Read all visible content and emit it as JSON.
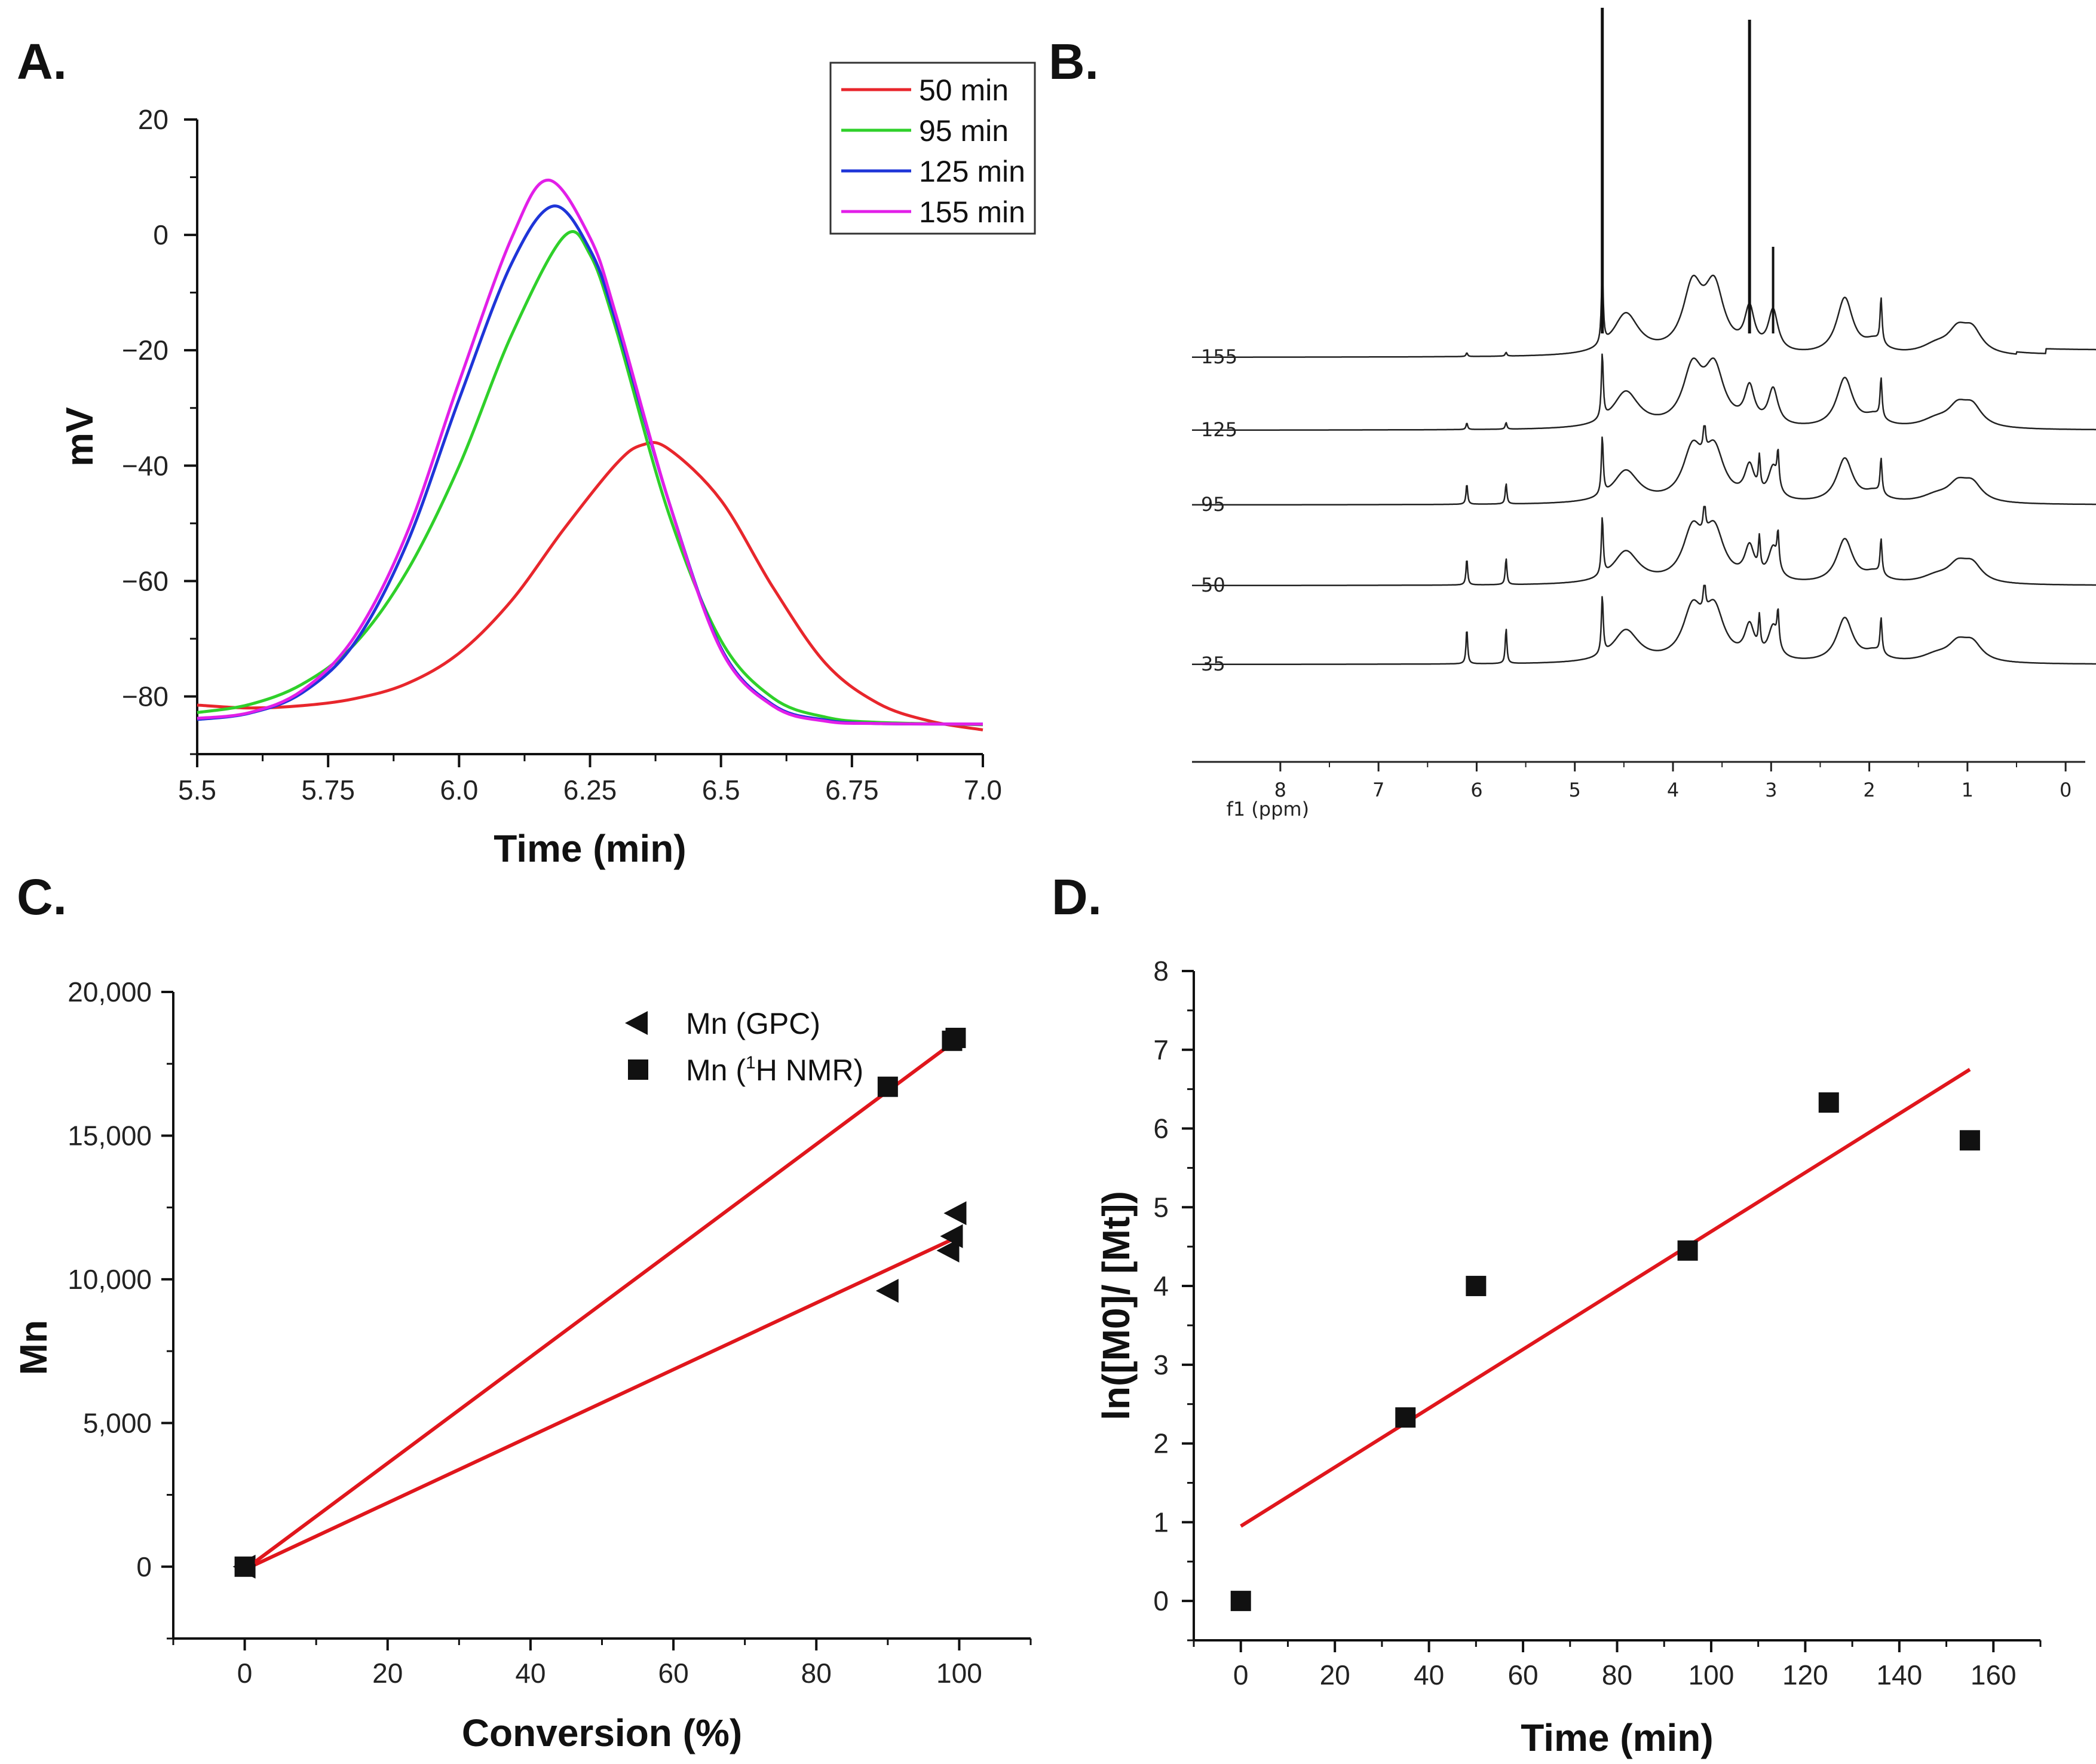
{
  "chart_data": [
    {
      "panel": "A.",
      "type": "line",
      "xlabel": "Time (min)",
      "ylabel": "mV",
      "xlim": [
        5.5,
        7.0
      ],
      "ylim": [
        -90,
        20
      ],
      "xticks": [
        "5.5",
        "5.75",
        "6.0",
        "6.25",
        "6.5",
        "6.75",
        "7.0"
      ],
      "xtick_values": [
        5.5,
        5.75,
        6.0,
        6.25,
        6.5,
        6.75,
        7.0
      ],
      "yticks": [
        "20",
        "0",
        "−20",
        "−40",
        "−60",
        "−80"
      ],
      "ytick_values": [
        20,
        0,
        -20,
        -40,
        -60,
        -80
      ],
      "legend_position": "top-right",
      "series": [
        {
          "name": "50 min",
          "color": "#e8262c",
          "values": [
            [
              5.5,
              -81.5
            ],
            [
              5.6,
              -82
            ],
            [
              5.7,
              -81.6
            ],
            [
              5.8,
              -80.4
            ],
            [
              5.9,
              -77.8
            ],
            [
              6.0,
              -72.5
            ],
            [
              6.1,
              -63.4
            ],
            [
              6.2,
              -51
            ],
            [
              6.3,
              -39.7
            ],
            [
              6.35,
              -36.4
            ],
            [
              6.4,
              -37.1
            ],
            [
              6.5,
              -46
            ],
            [
              6.6,
              -61.2
            ],
            [
              6.7,
              -74.3
            ],
            [
              6.8,
              -81.2
            ],
            [
              6.9,
              -84.3
            ],
            [
              7.0,
              -85.8
            ]
          ]
        },
        {
          "name": "95 min",
          "color": "#2fd02a",
          "values": [
            [
              5.5,
              -82.8
            ],
            [
              5.6,
              -81.4
            ],
            [
              5.7,
              -77.9
            ],
            [
              5.8,
              -71
            ],
            [
              5.9,
              -58.4
            ],
            [
              6.0,
              -40.1
            ],
            [
              6.1,
              -17.4
            ],
            [
              6.2,
              -0.3
            ],
            [
              6.25,
              -3.4
            ],
            [
              6.3,
              -16.4
            ],
            [
              6.4,
              -48.2
            ],
            [
              6.5,
              -70.3
            ],
            [
              6.6,
              -80.3
            ],
            [
              6.7,
              -83.6
            ],
            [
              6.8,
              -84.5
            ],
            [
              7.0,
              -84.9
            ]
          ]
        },
        {
          "name": "125 min",
          "color": "#1e35d8",
          "values": [
            [
              5.5,
              -84
            ],
            [
              5.6,
              -82.9
            ],
            [
              5.7,
              -79.4
            ],
            [
              5.8,
              -70.8
            ],
            [
              5.9,
              -53.6
            ],
            [
              6.0,
              -28.5
            ],
            [
              6.1,
              -5
            ],
            [
              6.18,
              5
            ],
            [
              6.25,
              -2.6
            ],
            [
              6.3,
              -15.1
            ],
            [
              6.4,
              -46.1
            ],
            [
              6.5,
              -71.6
            ],
            [
              6.6,
              -81.5
            ],
            [
              6.7,
              -84.1
            ],
            [
              6.8,
              -84.7
            ],
            [
              7.0,
              -84.8
            ]
          ]
        },
        {
          "name": "155 min",
          "color": "#e21fe8",
          "values": [
            [
              5.5,
              -83.8
            ],
            [
              5.6,
              -82.8
            ],
            [
              5.7,
              -79
            ],
            [
              5.8,
              -69.7
            ],
            [
              5.9,
              -51.8
            ],
            [
              6.0,
              -25.5
            ],
            [
              6.1,
              -0.6
            ],
            [
              6.17,
              9.5
            ],
            [
              6.25,
              -0.5
            ],
            [
              6.3,
              -14
            ],
            [
              6.4,
              -46.1
            ],
            [
              6.5,
              -71.9
            ],
            [
              6.6,
              -81.7
            ],
            [
              6.7,
              -84.3
            ],
            [
              6.8,
              -84.7
            ],
            [
              7.0,
              -84.8
            ]
          ]
        }
      ]
    },
    {
      "panel": "B.",
      "type": "line",
      "xlabel": "f1 (ppm)",
      "xlim": [
        8.9,
        -0.2
      ],
      "xticks": [
        "8",
        "7",
        "6",
        "5",
        "4",
        "3",
        "2",
        "1",
        "0"
      ],
      "xtick_values": [
        8,
        7,
        6,
        5,
        4,
        3,
        2,
        1,
        0
      ],
      "spectra_labels": [
        "155",
        "125",
        "95",
        "50",
        "35"
      ],
      "vinyl_peak_relative_heights": [
        0.05,
        0.1,
        0.35,
        0.45,
        0.6
      ],
      "dominant_peaks_ppm": [
        4.72,
        3.22,
        2.98
      ]
    },
    {
      "panel": "C.",
      "type": "scatter",
      "xlabel": "Conversion (%)",
      "ylabel": "Mn",
      "xlim": [
        -10,
        110
      ],
      "ylim": [
        -2500,
        20000
      ],
      "xticks": [
        "0",
        "20",
        "40",
        "60",
        "80",
        "100"
      ],
      "xtick_values": [
        0,
        20,
        40,
        60,
        80,
        100
      ],
      "yticks": [
        "20,000",
        "15,000",
        "10,000",
        "5,000",
        "0"
      ],
      "ytick_values": [
        20000,
        15000,
        10000,
        5000,
        0
      ],
      "legend_position": "top-right",
      "series": [
        {
          "name": "Mn  (GPC)",
          "marker": "left-triangle",
          "x": [
            0,
            90,
            98.5,
            99,
            99.5
          ],
          "y": [
            0,
            9600,
            11000,
            11500,
            12300
          ],
          "fit": [
            [
              0,
              -100
            ],
            [
              100,
              11500
            ]
          ]
        },
        {
          "name": "Mn (",
          "name_sup": "1",
          "name_tail": "H NMR)",
          "marker": "square",
          "x": [
            0,
            90,
            99,
            99.5
          ],
          "y": [
            0,
            16700,
            18300,
            18400
          ],
          "fit": [
            [
              0,
              -100
            ],
            [
              100,
              18400
            ]
          ]
        }
      ],
      "fit_color": "#e0161c"
    },
    {
      "panel": "D.",
      "type": "scatter",
      "xlabel": "Time (min)",
      "ylabel": "ln([M0]/ [Mt])",
      "xlim": [
        -10,
        170
      ],
      "ylim": [
        -0.5,
        8
      ],
      "xticks": [
        "0",
        "20",
        "40",
        "60",
        "80",
        "100",
        "120",
        "140",
        "160"
      ],
      "xtick_values": [
        0,
        20,
        40,
        60,
        80,
        100,
        120,
        140,
        160
      ],
      "yticks": [
        "8",
        "7",
        "6",
        "5",
        "4",
        "3",
        "2",
        "1",
        "0"
      ],
      "ytick_values": [
        8,
        7,
        6,
        5,
        4,
        3,
        2,
        1,
        0
      ],
      "series": [
        {
          "name": "ln([M0]/[Mt])",
          "marker": "square",
          "x": [
            0,
            35,
            50,
            95,
            125,
            155
          ],
          "y": [
            0,
            2.33,
            4.0,
            4.45,
            6.33,
            5.85
          ],
          "fit": [
            [
              0,
              0.95
            ],
            [
              155,
              6.75
            ]
          ]
        }
      ],
      "fit_color": "#e0161c"
    }
  ]
}
